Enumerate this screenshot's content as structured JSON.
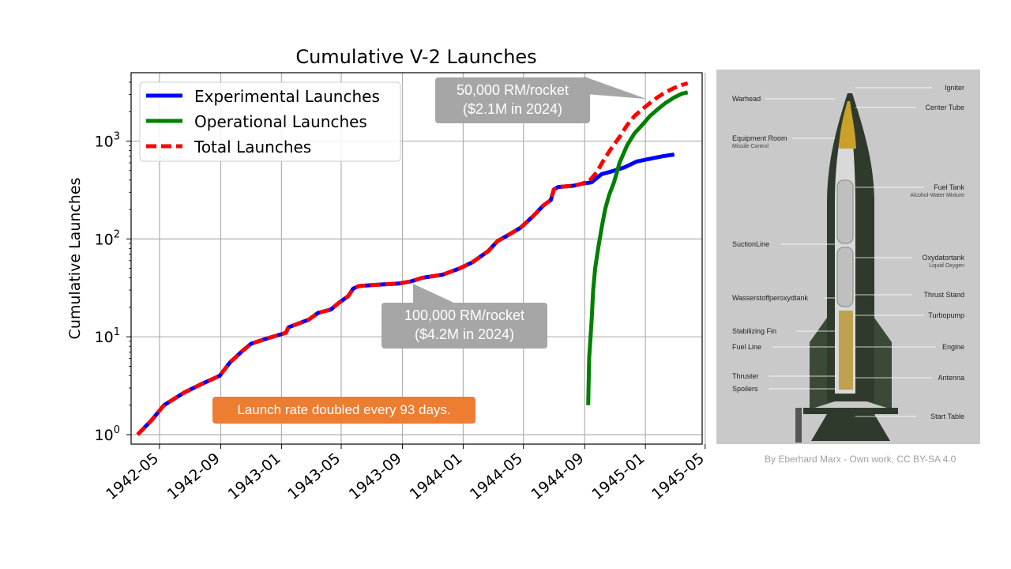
{
  "chart_data": {
    "type": "line",
    "title": "Cumulative V-2 Launches",
    "ylabel": "Cumulative Launches",
    "xlabel": "",
    "yscale": "log",
    "ylim": [
      0.8,
      5000
    ],
    "xlim": [
      "1942-03-05",
      "1945-04-25"
    ],
    "grid": true,
    "legend_position": "top-left",
    "x_tick_labels": [
      "1942-05",
      "1942-09",
      "1943-01",
      "1943-05",
      "1943-09",
      "1944-01",
      "1944-05",
      "1944-09",
      "1945-01",
      "1945-05"
    ],
    "x_ticks": [
      "1942-05-01",
      "1942-09-01",
      "1943-01-01",
      "1943-05-01",
      "1943-09-01",
      "1944-01-01",
      "1944-05-01",
      "1944-09-01",
      "1945-01-01",
      "1945-05-01"
    ],
    "y_ticks": [
      1,
      10,
      100,
      1000
    ],
    "y_tick_labels": [
      {
        "base": "10",
        "exp": "0"
      },
      {
        "base": "10",
        "exp": "1"
      },
      {
        "base": "10",
        "exp": "2"
      },
      {
        "base": "10",
        "exp": "3"
      }
    ],
    "series": [
      {
        "name": "Experimental Launches",
        "color": "#0000ff",
        "dash": false,
        "points": [
          [
            "1942-03-18",
            1
          ],
          [
            "1942-04-15",
            1.4
          ],
          [
            "1942-05-10",
            2
          ],
          [
            "1942-06-20",
            2.7
          ],
          [
            "1942-07-25",
            3.3
          ],
          [
            "1942-08-30",
            4
          ],
          [
            "1942-09-20",
            5.5
          ],
          [
            "1942-10-15",
            7.2
          ],
          [
            "1942-11-01",
            8.5
          ],
          [
            "1942-11-30",
            9.5
          ],
          [
            "1943-01-10",
            11
          ],
          [
            "1943-01-15",
            12.5
          ],
          [
            "1943-02-25",
            15
          ],
          [
            "1943-03-15",
            17.5
          ],
          [
            "1943-04-10",
            19
          ],
          [
            "1943-04-25",
            22
          ],
          [
            "1943-05-15",
            26
          ],
          [
            "1943-05-25",
            31
          ],
          [
            "1943-06-05",
            33
          ],
          [
            "1943-07-10",
            34
          ],
          [
            "1943-08-25",
            35
          ],
          [
            "1943-09-20",
            37
          ],
          [
            "1943-10-10",
            40
          ],
          [
            "1943-11-20",
            43
          ],
          [
            "1943-12-25",
            50
          ],
          [
            "1944-01-20",
            58
          ],
          [
            "1944-02-20",
            75
          ],
          [
            "1944-03-10",
            95
          ],
          [
            "1944-04-01",
            110
          ],
          [
            "1944-04-25",
            130
          ],
          [
            "1944-05-20",
            170
          ],
          [
            "1944-06-10",
            220
          ],
          [
            "1944-06-25",
            250
          ],
          [
            "1944-07-01",
            320
          ],
          [
            "1944-07-10",
            340
          ],
          [
            "1944-08-10",
            350
          ],
          [
            "1944-08-25",
            365
          ],
          [
            "1944-09-15",
            380
          ],
          [
            "1944-10-05",
            460
          ],
          [
            "1944-10-25",
            490
          ],
          [
            "1944-11-20",
            540
          ],
          [
            "1944-12-15",
            620
          ],
          [
            "1945-01-10",
            660
          ],
          [
            "1945-02-05",
            700
          ],
          [
            "1945-02-28",
            730
          ]
        ]
      },
      {
        "name": "Operational Launches",
        "color": "#008000",
        "dash": false,
        "points": [
          [
            "1944-09-08",
            2
          ],
          [
            "1944-09-10",
            6
          ],
          [
            "1944-09-15",
            15
          ],
          [
            "1944-09-18",
            30
          ],
          [
            "1944-09-22",
            50
          ],
          [
            "1944-09-28",
            80
          ],
          [
            "1944-10-05",
            130
          ],
          [
            "1944-10-12",
            200
          ],
          [
            "1944-10-20",
            280
          ],
          [
            "1944-10-30",
            380
          ],
          [
            "1944-11-10",
            600
          ],
          [
            "1944-11-25",
            900
          ],
          [
            "1944-12-10",
            1200
          ],
          [
            "1944-12-25",
            1450
          ],
          [
            "1945-01-10",
            1800
          ],
          [
            "1945-01-25",
            2100
          ],
          [
            "1945-02-10",
            2450
          ],
          [
            "1945-02-28",
            2800
          ],
          [
            "1945-03-15",
            3050
          ],
          [
            "1945-03-27",
            3150
          ]
        ]
      },
      {
        "name": "Total Launches",
        "color": "#ff0000",
        "dash": true,
        "points": [
          [
            "1942-03-18",
            1
          ],
          [
            "1942-04-15",
            1.4
          ],
          [
            "1942-05-10",
            2
          ],
          [
            "1942-06-20",
            2.7
          ],
          [
            "1942-07-25",
            3.3
          ],
          [
            "1942-08-30",
            4
          ],
          [
            "1942-09-20",
            5.5
          ],
          [
            "1942-10-15",
            7.2
          ],
          [
            "1942-11-01",
            8.5
          ],
          [
            "1942-11-30",
            9.5
          ],
          [
            "1943-01-10",
            11
          ],
          [
            "1943-01-15",
            12.5
          ],
          [
            "1943-02-25",
            15
          ],
          [
            "1943-03-15",
            17.5
          ],
          [
            "1943-04-10",
            19
          ],
          [
            "1943-04-25",
            22
          ],
          [
            "1943-05-15",
            26
          ],
          [
            "1943-05-25",
            31
          ],
          [
            "1943-06-05",
            33
          ],
          [
            "1943-07-10",
            34
          ],
          [
            "1943-08-25",
            35
          ],
          [
            "1943-09-20",
            37
          ],
          [
            "1943-10-10",
            40
          ],
          [
            "1943-11-20",
            43
          ],
          [
            "1943-12-25",
            50
          ],
          [
            "1944-01-20",
            58
          ],
          [
            "1944-02-20",
            75
          ],
          [
            "1944-03-10",
            95
          ],
          [
            "1944-04-01",
            110
          ],
          [
            "1944-04-25",
            130
          ],
          [
            "1944-05-20",
            170
          ],
          [
            "1944-06-10",
            220
          ],
          [
            "1944-06-25",
            250
          ],
          [
            "1944-07-01",
            320
          ],
          [
            "1944-07-10",
            340
          ],
          [
            "1944-08-10",
            350
          ],
          [
            "1944-08-25",
            365
          ],
          [
            "1944-09-10",
            390
          ],
          [
            "1944-09-25",
            480
          ],
          [
            "1944-10-10",
            650
          ],
          [
            "1944-10-25",
            850
          ],
          [
            "1944-11-10",
            1100
          ],
          [
            "1944-11-25",
            1450
          ],
          [
            "1944-12-10",
            1800
          ],
          [
            "1944-12-25",
            2100
          ],
          [
            "1945-01-10",
            2450
          ],
          [
            "1945-01-25",
            2800
          ],
          [
            "1945-02-10",
            3150
          ],
          [
            "1945-02-28",
            3500
          ],
          [
            "1945-03-15",
            3750
          ],
          [
            "1945-03-27",
            3900
          ]
        ]
      }
    ]
  },
  "annotations": {
    "callout_top_line1": "50,000 RM/rocket",
    "callout_top_line2": "($2.1M in 2024)",
    "callout_mid_line1": "100,000 RM/rocket",
    "callout_mid_line2": "($4.2M in 2024)",
    "rate_text": "Launch rate doubled every 93 days."
  },
  "rocket_diagram": {
    "labels_left": [
      {
        "text": "Warhead",
        "sub": ""
      },
      {
        "text": "Equipment Room",
        "sub": "Missile Control"
      },
      {
        "text": "SuctionLine",
        "sub": ""
      },
      {
        "text": "Wasserstoffperoxydtank",
        "sub": ""
      },
      {
        "text": "Stabilizing Fin",
        "sub": ""
      },
      {
        "text": "Fuel Line",
        "sub": ""
      },
      {
        "text": "Thruster",
        "sub": ""
      },
      {
        "text": "Spoilers",
        "sub": ""
      }
    ],
    "labels_right": [
      {
        "text": "Igniter",
        "sub": ""
      },
      {
        "text": "Center Tube",
        "sub": ""
      },
      {
        "text": "Fuel Tank",
        "sub": "Alcohol-Water Mixture"
      },
      {
        "text": "Oxydatortank",
        "sub": "Liquid Oxygen"
      },
      {
        "text": "Thrust Stand",
        "sub": ""
      },
      {
        "text": "Turbopump",
        "sub": ""
      },
      {
        "text": "Engine",
        "sub": ""
      },
      {
        "text": "Antenna",
        "sub": ""
      },
      {
        "text": "Start Table",
        "sub": ""
      }
    ],
    "credit": "By Eberhard Marx - Own work, CC BY-SA 4.0"
  }
}
